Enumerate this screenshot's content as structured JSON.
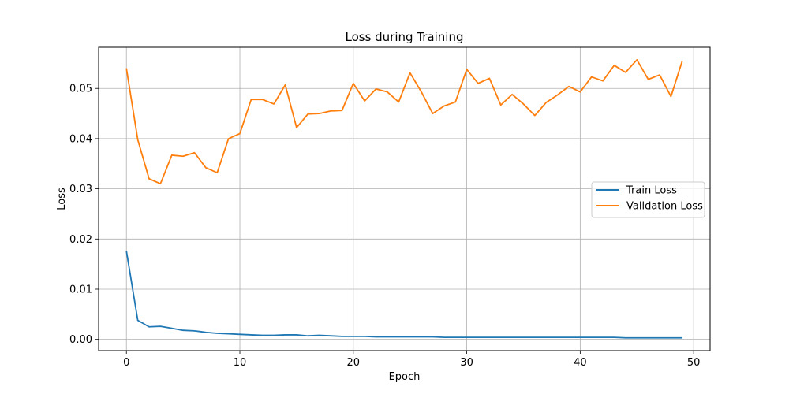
{
  "chart_data": {
    "type": "line",
    "title": "Loss during Training",
    "xlabel": "Epoch",
    "ylabel": "Loss",
    "xlim": [
      -2.45,
      51.45
    ],
    "ylim": [
      -0.00225,
      0.0582
    ],
    "xticks": [
      0,
      10,
      20,
      30,
      40,
      50
    ],
    "yticks": [
      0.0,
      0.01,
      0.02,
      0.03,
      0.04,
      0.05
    ],
    "ytick_labels": [
      "0.00",
      "0.01",
      "0.02",
      "0.03",
      "0.04",
      "0.05"
    ],
    "grid": true,
    "legend_position": "center-right",
    "x": [
      0,
      1,
      2,
      3,
      4,
      5,
      6,
      7,
      8,
      9,
      10,
      11,
      12,
      13,
      14,
      15,
      16,
      17,
      18,
      19,
      20,
      21,
      22,
      23,
      24,
      25,
      26,
      27,
      28,
      29,
      30,
      31,
      32,
      33,
      34,
      35,
      36,
      37,
      38,
      39,
      40,
      41,
      42,
      43,
      44,
      45,
      46,
      47,
      48,
      49
    ],
    "series": [
      {
        "name": "Train Loss",
        "color": "#1f77b4",
        "values": [
          0.0176,
          0.0038,
          0.0025,
          0.0026,
          0.0022,
          0.0018,
          0.0017,
          0.0014,
          0.0012,
          0.0011,
          0.001,
          0.0009,
          0.0008,
          0.0008,
          0.0009,
          0.0009,
          0.0007,
          0.0008,
          0.0007,
          0.0006,
          0.0006,
          0.0006,
          0.0005,
          0.0005,
          0.0005,
          0.0005,
          0.0005,
          0.0005,
          0.0004,
          0.0004,
          0.0004,
          0.0004,
          0.0004,
          0.0004,
          0.0004,
          0.0004,
          0.0004,
          0.0004,
          0.0004,
          0.0004,
          0.0004,
          0.0004,
          0.0004,
          0.0004,
          0.0003,
          0.0003,
          0.0003,
          0.0003,
          0.0003,
          0.0003
        ]
      },
      {
        "name": "Validation Loss",
        "color": "#ff7f0e",
        "values": [
          0.054,
          0.0398,
          0.032,
          0.031,
          0.0367,
          0.0365,
          0.0372,
          0.0342,
          0.0332,
          0.04,
          0.041,
          0.0478,
          0.0478,
          0.0469,
          0.0507,
          0.0422,
          0.0449,
          0.045,
          0.0455,
          0.0456,
          0.051,
          0.0475,
          0.0499,
          0.0493,
          0.0473,
          0.0531,
          0.0493,
          0.045,
          0.0465,
          0.0473,
          0.0538,
          0.051,
          0.052,
          0.0467,
          0.0488,
          0.0469,
          0.0446,
          0.0472,
          0.0487,
          0.0504,
          0.0493,
          0.0523,
          0.0515,
          0.0546,
          0.0532,
          0.0557,
          0.0518,
          0.0527,
          0.0484,
          0.0555
        ]
      }
    ]
  }
}
